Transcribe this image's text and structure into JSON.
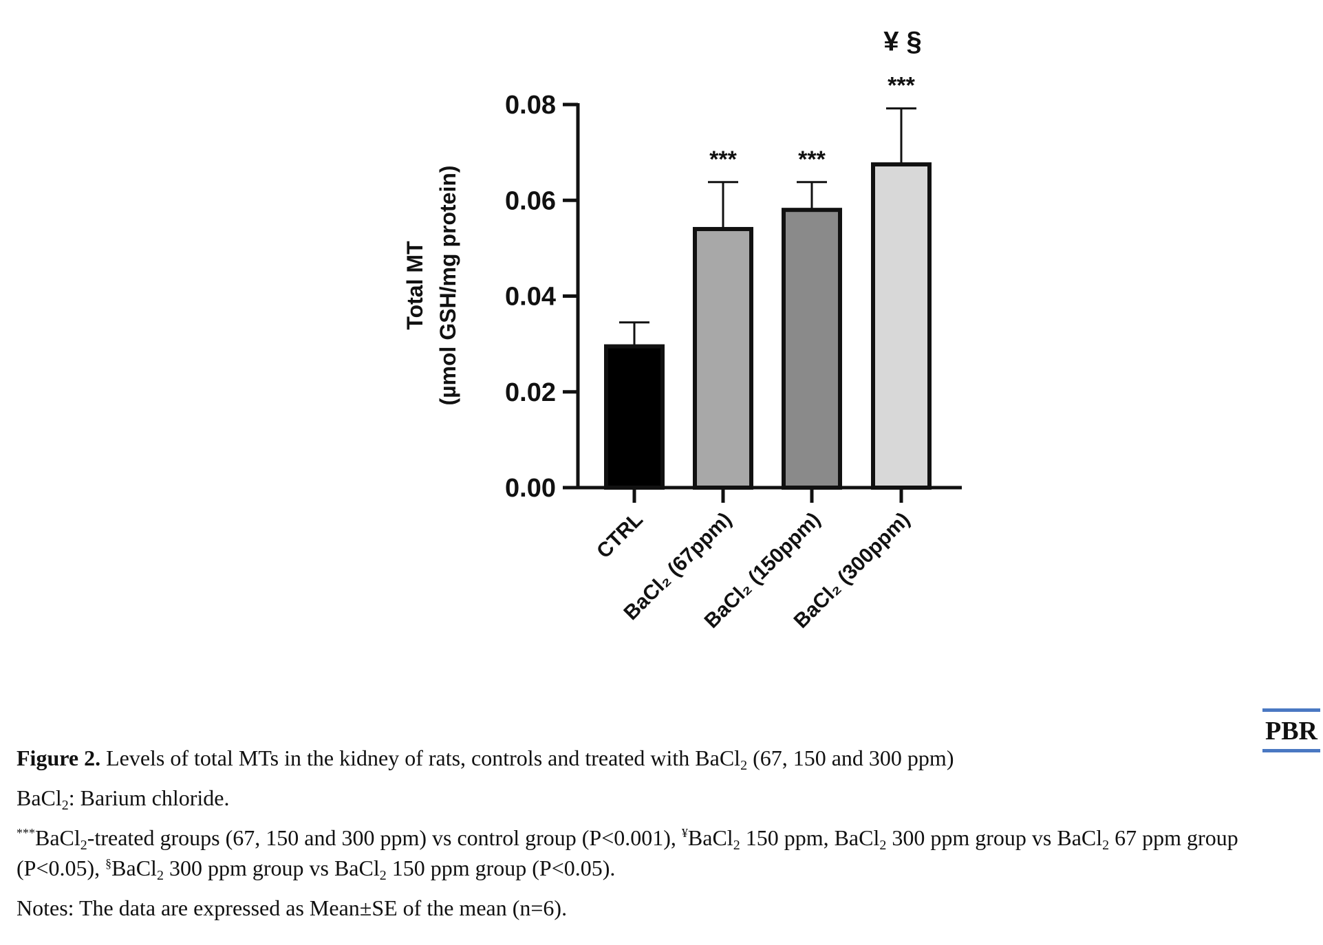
{
  "chart_data": {
    "type": "bar",
    "categories": [
      "CTRL",
      "BaCl₂ (67ppm)",
      "BaCl₂ (150ppm)",
      "BaCl₂ (300ppm)"
    ],
    "values": [
      0.0295,
      0.054,
      0.058,
      0.0675
    ],
    "errors": [
      0.005,
      0.0098,
      0.0058,
      0.0117
    ],
    "significance": [
      "",
      "***",
      "***",
      "***"
    ],
    "extra_marks": [
      "",
      "",
      "",
      "¥ §"
    ],
    "bar_colors": [
      "#000000",
      "#a8a8a8",
      "#8a8a8a",
      "#d8d8d8"
    ],
    "ylabel_line1": "Total MT",
    "ylabel_line2": "(µmol GSH/mg protein)",
    "ylim": [
      0,
      0.08
    ],
    "yticks": [
      "0.00",
      "0.02",
      "0.04",
      "0.06",
      "0.08"
    ],
    "grid": false
  },
  "logo": "PBR",
  "caption": {
    "fig_label": "Figure 2.",
    "fig_text_a": " Levels of total MTs in the kidney of rats, controls and treated with BaCl",
    "fig_text_b": " (67, 150 and 300 ppm)",
    "abbr_a": "BaCl",
    "abbr_b": ": Barium chloride.",
    "sig_sup1": "***",
    "sig_t1": "BaCl",
    "sig_t2": "-treated groups (67, 150 and 300 ppm) vs control group (P<0.001), ",
    "sig_sup2": "¥",
    "sig_t3": "BaCl",
    "sig_t4": " 150 ppm, BaCl",
    "sig_t5": " 300 ppm group vs BaCl",
    "sig_t6": " 67 ppm group (P<0.05), ",
    "sig_sup3": "§",
    "sig_t7": "BaCl",
    "sig_t8": " 300 ppm group vs BaCl",
    "sig_t9": " 150 ppm group (P<0.05).",
    "sub2": "2",
    "notes": "Notes: The data are expressed as Mean±SE of the mean (n=6)."
  }
}
